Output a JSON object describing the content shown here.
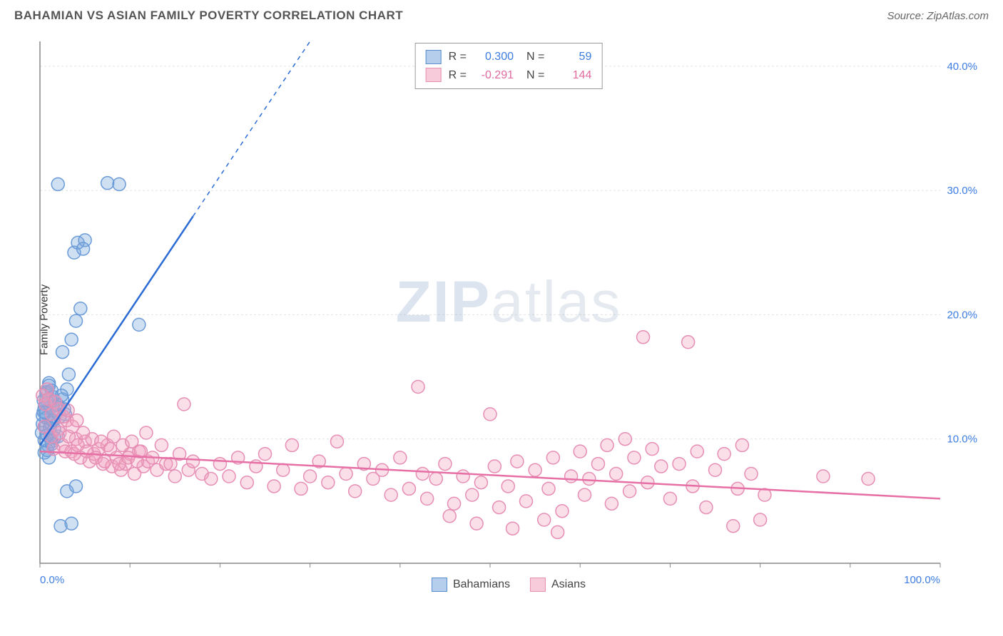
{
  "title": "BAHAMIAN VS ASIAN FAMILY POVERTY CORRELATION CHART",
  "source": "Source: ZipAtlas.com",
  "y_axis_label": "Family Poverty",
  "watermark_bold": "ZIP",
  "watermark_light": "atlas",
  "chart": {
    "type": "scatter",
    "xlim": [
      0,
      100
    ],
    "ylim": [
      0,
      42
    ],
    "x_ticks": [
      0,
      10,
      20,
      30,
      40,
      50,
      60,
      70,
      80,
      90,
      100
    ],
    "x_tick_labels": {
      "0": "0.0%",
      "100": "100.0%"
    },
    "y_ticks": [
      10,
      20,
      30,
      40
    ],
    "y_tick_labels": {
      "10": "10.0%",
      "20": "20.0%",
      "30": "30.0%",
      "40": "40.0%"
    },
    "grid_color": "#e2e2e2",
    "grid_dash": "3,3",
    "axis_color": "#888",
    "background": "#ffffff",
    "marker_radius": 9,
    "marker_stroke_width": 1.5,
    "series": [
      {
        "name": "Bahamians",
        "fill": "rgba(120,165,220,0.35)",
        "stroke": "#6a9bd8",
        "points": [
          [
            0.2,
            10.5
          ],
          [
            0.3,
            11.2
          ],
          [
            0.5,
            12.5
          ],
          [
            0.6,
            11.0
          ],
          [
            0.8,
            13.8
          ],
          [
            0.4,
            12.2
          ],
          [
            1.0,
            14.5
          ],
          [
            1.2,
            13.0
          ],
          [
            1.5,
            11.5
          ],
          [
            1.8,
            12.8
          ],
          [
            2.0,
            10.2
          ],
          [
            2.2,
            11.8
          ],
          [
            2.5,
            13.2
          ],
          [
            2.8,
            12.0
          ],
          [
            3.0,
            14.0
          ],
          [
            3.2,
            15.2
          ],
          [
            1.3,
            9.8
          ],
          [
            1.6,
            10.8
          ],
          [
            0.9,
            9.5
          ],
          [
            0.7,
            11.7
          ],
          [
            1.1,
            12.6
          ],
          [
            1.4,
            13.4
          ],
          [
            2.5,
            17.0
          ],
          [
            3.5,
            18.0
          ],
          [
            4.0,
            19.5
          ],
          [
            4.5,
            20.5
          ],
          [
            11.0,
            19.2
          ],
          [
            3.8,
            25.0
          ],
          [
            4.2,
            25.8
          ],
          [
            5.0,
            26.0
          ],
          [
            4.8,
            25.3
          ],
          [
            2.0,
            30.5
          ],
          [
            7.5,
            30.6
          ],
          [
            8.8,
            30.5
          ],
          [
            3.0,
            5.8
          ],
          [
            4.0,
            6.2
          ],
          [
            2.3,
            3.0
          ],
          [
            3.5,
            3.2
          ],
          [
            0.5,
            8.9
          ],
          [
            0.8,
            9.1
          ],
          [
            1.0,
            8.5
          ],
          [
            1.3,
            9.6
          ],
          [
            1.6,
            10.1
          ],
          [
            0.3,
            11.9
          ],
          [
            0.6,
            12.1
          ],
          [
            0.9,
            12.9
          ],
          [
            1.2,
            11.3
          ],
          [
            1.5,
            12.3
          ],
          [
            0.4,
            13.1
          ],
          [
            0.7,
            13.7
          ],
          [
            1.0,
            14.3
          ],
          [
            1.3,
            13.9
          ],
          [
            0.5,
            9.9
          ],
          [
            0.8,
            10.3
          ],
          [
            1.1,
            10.9
          ],
          [
            1.4,
            11.5
          ],
          [
            2.0,
            12.7
          ],
          [
            2.4,
            13.5
          ],
          [
            2.7,
            12.4
          ]
        ],
        "regression": {
          "x1": 0,
          "y1": 9.5,
          "x2": 30,
          "y2": 42,
          "color": "#2b6cd4",
          "width": 2.5,
          "dash_after_x": 17
        }
      },
      {
        "name": "Asians",
        "fill": "rgba(240,160,190,0.35)",
        "stroke": "#e68eb4",
        "points": [
          [
            0.5,
            11.0
          ],
          [
            1.2,
            10.2
          ],
          [
            2.0,
            10.8
          ],
          [
            2.5,
            9.5
          ],
          [
            3.0,
            11.5
          ],
          [
            3.5,
            9.0
          ],
          [
            4.0,
            10.0
          ],
          [
            4.5,
            8.5
          ],
          [
            5.0,
            9.8
          ],
          [
            5.5,
            8.2
          ],
          [
            6.0,
            8.8
          ],
          [
            6.5,
            9.2
          ],
          [
            7.0,
            8.0
          ],
          [
            7.5,
            9.5
          ],
          [
            8.0,
            7.8
          ],
          [
            8.5,
            8.5
          ],
          [
            9.0,
            7.5
          ],
          [
            9.5,
            8.0
          ],
          [
            10.0,
            8.8
          ],
          [
            10.5,
            7.2
          ],
          [
            11.0,
            9.0
          ],
          [
            11.5,
            7.8
          ],
          [
            12.0,
            8.2
          ],
          [
            13.0,
            7.5
          ],
          [
            14.0,
            8.0
          ],
          [
            15.0,
            7.0
          ],
          [
            16.0,
            12.8
          ],
          [
            16.5,
            7.5
          ],
          [
            17.0,
            8.2
          ],
          [
            18.0,
            7.2
          ],
          [
            19.0,
            6.8
          ],
          [
            20.0,
            8.0
          ],
          [
            21.0,
            7.0
          ],
          [
            22.0,
            8.5
          ],
          [
            23.0,
            6.5
          ],
          [
            24.0,
            7.8
          ],
          [
            25.0,
            8.8
          ],
          [
            26.0,
            6.2
          ],
          [
            27.0,
            7.5
          ],
          [
            28.0,
            9.5
          ],
          [
            29.0,
            6.0
          ],
          [
            30.0,
            7.0
          ],
          [
            31.0,
            8.2
          ],
          [
            32.0,
            6.5
          ],
          [
            33.0,
            9.8
          ],
          [
            34.0,
            7.2
          ],
          [
            35.0,
            5.8
          ],
          [
            36.0,
            8.0
          ],
          [
            37.0,
            6.8
          ],
          [
            38.0,
            7.5
          ],
          [
            39.0,
            5.5
          ],
          [
            40.0,
            8.5
          ],
          [
            41.0,
            6.0
          ],
          [
            42.0,
            14.2
          ],
          [
            42.5,
            7.2
          ],
          [
            43.0,
            5.2
          ],
          [
            44.0,
            6.8
          ],
          [
            45.0,
            8.0
          ],
          [
            46.0,
            4.8
          ],
          [
            47.0,
            7.0
          ],
          [
            48.0,
            5.5
          ],
          [
            49.0,
            6.5
          ],
          [
            50.0,
            12.0
          ],
          [
            50.5,
            7.8
          ],
          [
            51.0,
            4.5
          ],
          [
            52.0,
            6.2
          ],
          [
            53.0,
            8.2
          ],
          [
            54.0,
            5.0
          ],
          [
            55.0,
            7.5
          ],
          [
            56.0,
            3.5
          ],
          [
            56.5,
            6.0
          ],
          [
            57.0,
            8.5
          ],
          [
            58.0,
            4.2
          ],
          [
            59.0,
            7.0
          ],
          [
            60.0,
            9.0
          ],
          [
            60.5,
            5.5
          ],
          [
            61.0,
            6.8
          ],
          [
            62.0,
            8.0
          ],
          [
            63.0,
            9.5
          ],
          [
            63.5,
            4.8
          ],
          [
            64.0,
            7.2
          ],
          [
            65.0,
            10.0
          ],
          [
            65.5,
            5.8
          ],
          [
            66.0,
            8.5
          ],
          [
            67.0,
            18.2
          ],
          [
            67.5,
            6.5
          ],
          [
            68.0,
            9.2
          ],
          [
            69.0,
            7.8
          ],
          [
            70.0,
            5.2
          ],
          [
            71.0,
            8.0
          ],
          [
            72.0,
            17.8
          ],
          [
            72.5,
            6.2
          ],
          [
            73.0,
            9.0
          ],
          [
            74.0,
            4.5
          ],
          [
            75.0,
            7.5
          ],
          [
            76.0,
            8.8
          ],
          [
            77.0,
            3.0
          ],
          [
            77.5,
            6.0
          ],
          [
            78.0,
            9.5
          ],
          [
            79.0,
            7.2
          ],
          [
            80.0,
            3.5
          ],
          [
            80.5,
            5.5
          ],
          [
            87.0,
            7.0
          ],
          [
            92.0,
            6.8
          ],
          [
            1.5,
            9.2
          ],
          [
            2.2,
            10.5
          ],
          [
            2.8,
            9.0
          ],
          [
            3.2,
            10.2
          ],
          [
            3.8,
            8.8
          ],
          [
            4.2,
            9.5
          ],
          [
            4.8,
            10.5
          ],
          [
            5.2,
            9.0
          ],
          [
            5.8,
            10.0
          ],
          [
            6.2,
            8.5
          ],
          [
            6.8,
            9.8
          ],
          [
            7.2,
            8.2
          ],
          [
            7.8,
            9.2
          ],
          [
            8.2,
            10.2
          ],
          [
            8.8,
            8.0
          ],
          [
            9.2,
            9.5
          ],
          [
            9.8,
            8.5
          ],
          [
            10.2,
            9.8
          ],
          [
            10.8,
            8.2
          ],
          [
            11.2,
            9.0
          ],
          [
            11.8,
            10.5
          ],
          [
            12.5,
            8.5
          ],
          [
            13.5,
            9.5
          ],
          [
            14.5,
            8.0
          ],
          [
            15.5,
            8.8
          ],
          [
            0.8,
            14.0
          ],
          [
            0.3,
            13.5
          ],
          [
            0.6,
            12.8
          ],
          [
            1.0,
            13.2
          ],
          [
            1.3,
            12.0
          ],
          [
            1.7,
            13.0
          ],
          [
            2.1,
            12.4
          ],
          [
            2.6,
            11.8
          ],
          [
            3.1,
            12.3
          ],
          [
            3.6,
            11.0
          ],
          [
            4.1,
            11.5
          ],
          [
            45.5,
            3.8
          ],
          [
            48.5,
            3.2
          ],
          [
            52.5,
            2.8
          ],
          [
            57.5,
            2.5
          ]
        ],
        "regression": {
          "x1": 0,
          "y1": 9.0,
          "x2": 100,
          "y2": 5.2,
          "color": "#e670a5",
          "width": 2.5
        }
      }
    ]
  },
  "stats": {
    "rows": [
      {
        "swatch": "blue",
        "r_label": "R =",
        "r_val": "0.300",
        "n_label": "N =",
        "n_val": "59",
        "val_class": "blue"
      },
      {
        "swatch": "pink",
        "r_label": "R =",
        "r_val": "-0.291",
        "n_label": "N =",
        "n_val": "144",
        "val_class": "pink"
      }
    ]
  },
  "bottom_legend": [
    {
      "swatch": "blue",
      "label": "Bahamians"
    },
    {
      "swatch": "pink",
      "label": "Asians"
    }
  ]
}
